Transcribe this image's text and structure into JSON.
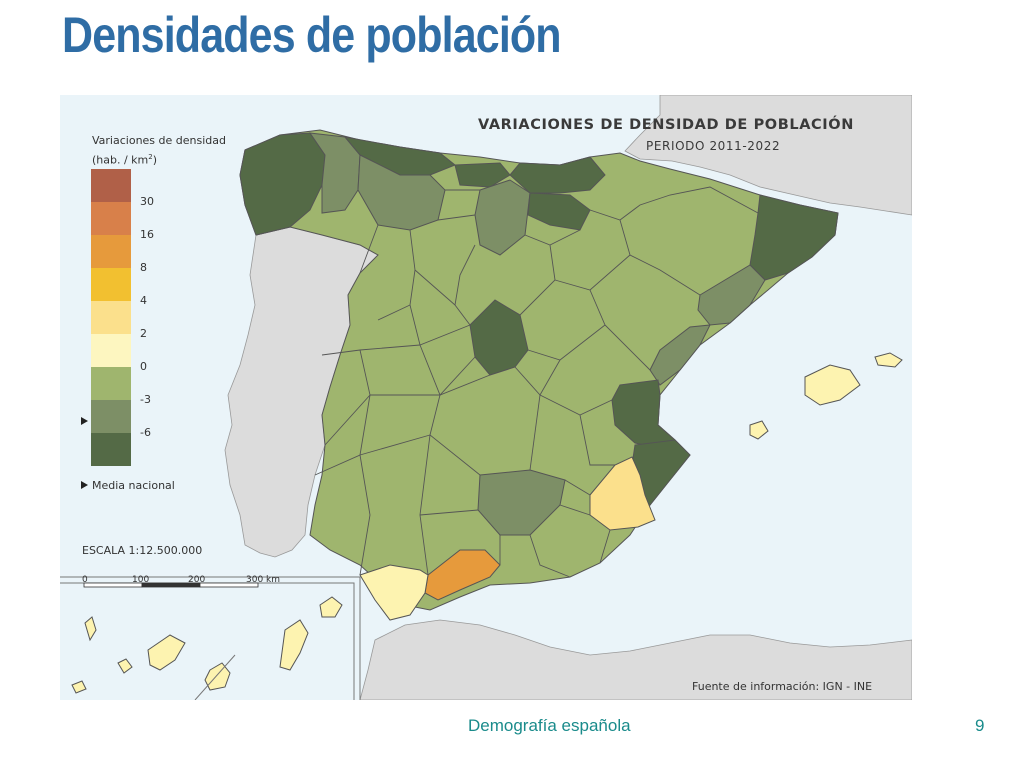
{
  "slide": {
    "title": "Densidades de población",
    "footer_text": "Demografía española",
    "page_number": "9"
  },
  "map": {
    "title": "VARIACIONES DE DENSIDAD DE POBLACIÓN",
    "subtitle": "PERIODO 2011-2022",
    "source": "Fuente de información: IGN - INE",
    "scale": "ESCALA 1:12.500.000",
    "scale_ticks": [
      "0",
      "100",
      "200",
      "300 km"
    ],
    "legend": {
      "title_line1": "Variaciones de densidad",
      "title_line2": "(hab. / km",
      "title_sup": "2",
      "title_close": ")",
      "labels": [
        "30",
        "16",
        "8",
        "4",
        "2",
        "0",
        "-3",
        "-6"
      ],
      "media_nacional": "Media nacional",
      "colors": [
        "#b06048",
        "#d8804a",
        "#e69a3c",
        "#f2c030",
        "#fbe08c",
        "#fdf6c0",
        "#9fb56e",
        "#7d8f66",
        "#546a46"
      ]
    },
    "colors": {
      "sea": "#eaf4f9",
      "foreign_land": "#dcdcdc",
      "dark_green": "#546a46",
      "grey_green": "#7d8f66",
      "light_green": "#9fb56e",
      "pale_yellow": "#fdf3b0",
      "light_orange": "#fbe08c",
      "orange": "#e69a3c"
    }
  }
}
